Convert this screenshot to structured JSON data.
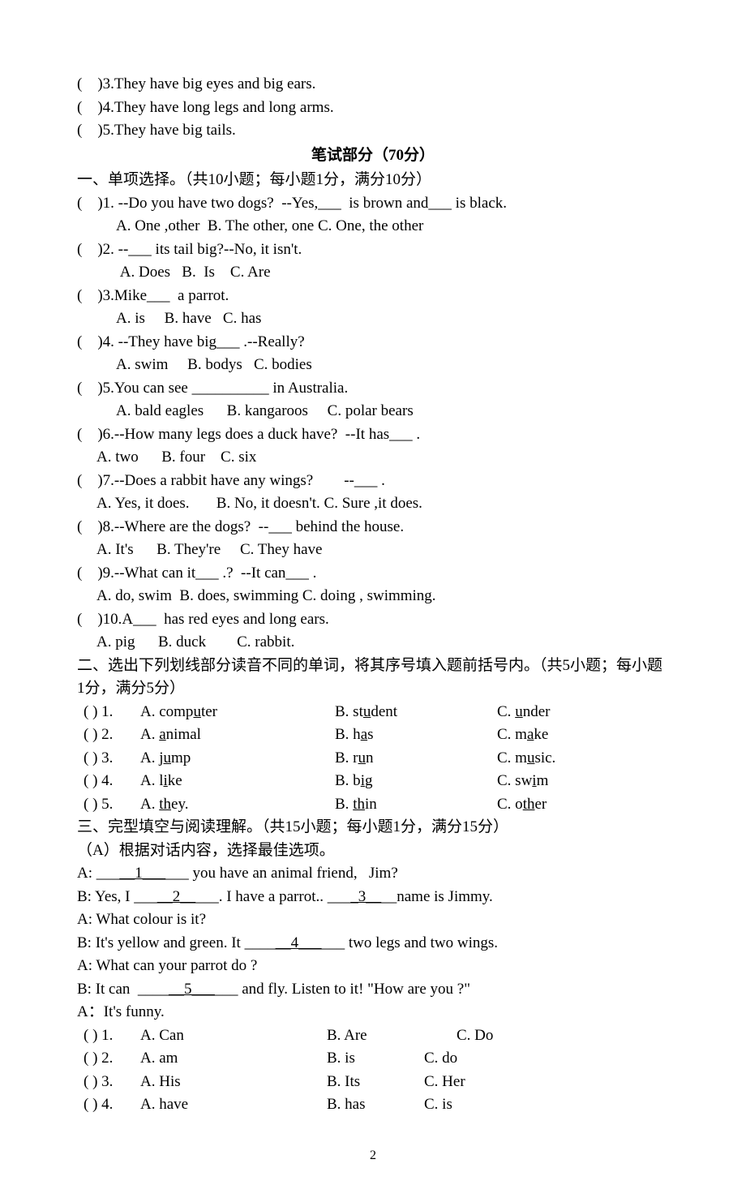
{
  "pre": {
    "l1": "(    )3.They have big eyes and big ears.",
    "l2": "(    )4.They have long legs and long arms.",
    "l3": "(    )5.They have big tails."
  },
  "title": "笔试部分（70分）",
  "s1": {
    "head": "一、单项选择。（共10小题；每小题1分，满分10分）",
    "q1a": "(    )1. --Do you have two dogs?  --Yes,___  is brown and___ is black.",
    "q1b": "A. One ,other  B. The other, one C. One, the other",
    "q2a": "(    )2. --___ its tail big?--No, it isn't.",
    "q2b": " A. Does   B.  Is    C. Are",
    "q3a": "(    )3.Mike___  a parrot.",
    "q3b": "A. is     B. have   C. has",
    "q4a": "(    )4. --They have big___ .--Really?",
    "q4b": "A. swim     B. bodys   C. bodies",
    "q5a": "(    )5.You can see __________ in Australia.",
    "q5b": "A. bald eagles      B. kangaroos     C. polar bears",
    "q6a": "(    )6.--How many legs does a duck have?  --It has___ .",
    "q6b": "A. two      B. four    C. six",
    "q7a": "(    )7.--Does a rabbit have any wings?        --___ .",
    "q7b": "A. Yes, it does.       B. No, it doesn't. C. Sure ,it does.",
    "q8a": "(    )8.--Where are the dogs?  --___ behind the house.",
    "q8b": "A. It's      B. They're     C. They have",
    "q9a": "(    )9.--What can it___ .?  --It can___ .",
    "q9b": "A. do, swim  B. does, swimming C. doing , swimming.",
    "q10a": "(    )10.A___  has red eyes and long ears.",
    "q10b": "A. pig      B. duck        C. rabbit."
  },
  "s2": {
    "head": "二、选出下列划线部分读音不同的单词，将其序号填入题前括号内。（共5小题；每小题1分，满分5分）",
    "rows": [
      {
        "n": "(    ) 1.",
        "a_pre": "A. comp",
        "a_u": "u",
        "a_post": "ter",
        "b_pre": "B. st",
        "b_u": "u",
        "b_post": "dent",
        "c_pre": "C. ",
        "c_u": "u",
        "c_post": "nder"
      },
      {
        "n": "(    ) 2.",
        "a_pre": "A. ",
        "a_u": "a",
        "a_post": "nimal",
        "b_pre": "B. h",
        "b_u": "a",
        "b_post": "s",
        "c_pre": "C. m",
        "c_u": "a",
        "c_post": "ke"
      },
      {
        "n": "(    ) 3.",
        "a_pre": "A. ",
        "a_u": "ju",
        "a_post": "mp",
        "b_pre": "B. r",
        "b_u": "u",
        "b_post": "n",
        "c_pre": "C. m",
        "c_u": "u",
        "c_post": "sic."
      },
      {
        "n": "(    ) 4.",
        "a_pre": "A. l",
        "a_u": "i",
        "a_post": "ke",
        "b_pre": "B. b",
        "b_u": "i",
        "b_post": "g",
        "c_pre": "C. sw",
        "c_u": "i",
        "c_post": "m"
      },
      {
        "n": "(    ) 5.",
        "a_pre": "A. ",
        "a_u": "th",
        "a_post": "ey.",
        "b_pre": "B. ",
        "b_u": "th",
        "b_post": "in",
        "c_pre": "C. o",
        "c_u": "th",
        "c_post": "er"
      }
    ]
  },
  "s3": {
    "head": "三、完型填空与阅读理解。（共15小题；每小题1分，满分15分）",
    "sub": "（A）根据对话内容，选择最佳选项。",
    "dA1_pre": "A: ___",
    "dA1_u": "__1___",
    "dA1_post": "___ you have an animal friend,   Jim?",
    "dB1_pre": "B: Yes, I ___",
    "dB1_u": "__2__",
    "dB1_mid": "___. I have a parrot.. ___",
    "dB1_u2": "_3__",
    "dB1_post": "__name is Jimmy.",
    "dA2": "A: What colour is it?",
    "dB2_pre": "B: It's yellow and green. It ____",
    "dB2_u": "__4___",
    "dB2_post": "___ two legs and two wings.",
    "dA3": "A: What can your parrot do ?",
    "dB3_pre": "B: It can  ____",
    "dB3_u": "__5___",
    "dB3_post": "___ and fly. Listen to it! \"How are you ?\"",
    "dA4": "A：It's funny.",
    "rows": [
      {
        "n": "(    ) 1.",
        "a": "A. Can",
        "b": "B. Are",
        "c": "C. Do"
      },
      {
        "n": "(    ) 2.",
        "a": "A. am",
        "b": "B. is",
        "c": "C. do"
      },
      {
        "n": "(    ) 3.",
        "a": "A. His",
        "b": "B. Its",
        "c": "C. Her"
      },
      {
        "n": "(    ) 4.",
        "a": "A. have",
        "b": "B. has",
        "c": "C. is"
      }
    ]
  },
  "pagenum": "2"
}
